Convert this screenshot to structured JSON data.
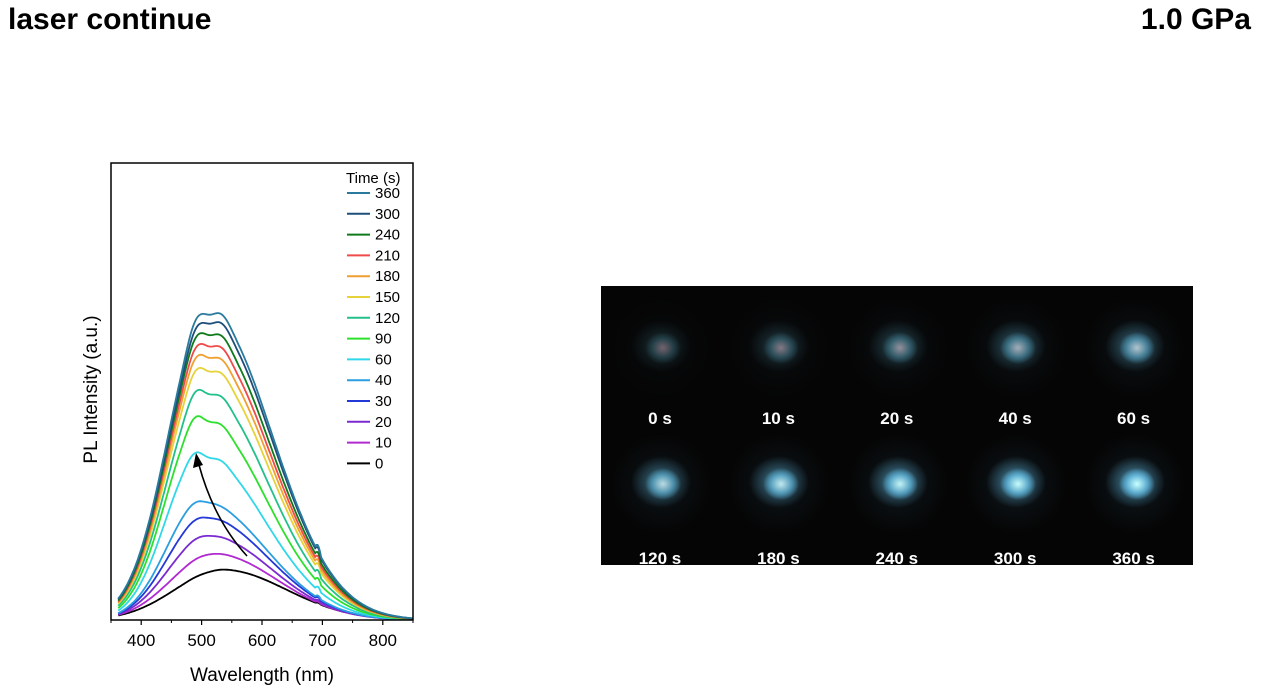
{
  "header": {
    "title": "laser continue",
    "pressure": "1.0 GPa"
  },
  "chart_data": {
    "type": "line",
    "xlabel": "Wavelength (nm)",
    "ylabel": "PL Intensity (a.u.)",
    "xlim": [
      350,
      850
    ],
    "ylim": [
      0,
      1.0
    ],
    "xticks": [
      400,
      500,
      600,
      700,
      800
    ],
    "yticks_shown": false,
    "legend_title": "Time (s)",
    "legend_position": "top-right",
    "grid": false,
    "annotation": "arrow indicating increasing intensity with time",
    "series": [
      {
        "name": "360",
        "color": "#2a7a9e",
        "peak_wavelength": 510,
        "peak_intensity": 0.68
      },
      {
        "name": "300",
        "color": "#1e4f7a",
        "peak_wavelength": 510,
        "peak_intensity": 0.66
      },
      {
        "name": "240",
        "color": "#0f7a1a",
        "peak_wavelength": 508,
        "peak_intensity": 0.635
      },
      {
        "name": "210",
        "color": "#f04a4a",
        "peak_wavelength": 507,
        "peak_intensity": 0.61
      },
      {
        "name": "180",
        "color": "#f0a030",
        "peak_wavelength": 506,
        "peak_intensity": 0.585
      },
      {
        "name": "150",
        "color": "#e6d23a",
        "peak_wavelength": 505,
        "peak_intensity": 0.555
      },
      {
        "name": "120",
        "color": "#22c08a",
        "peak_wavelength": 503,
        "peak_intensity": 0.505
      },
      {
        "name": "90",
        "color": "#2de02d",
        "peak_wavelength": 500,
        "peak_intensity": 0.445
      },
      {
        "name": "60",
        "color": "#2fd8e8",
        "peak_wavelength": 498,
        "peak_intensity": 0.365
      },
      {
        "name": "40",
        "color": "#2a9ee0",
        "peak_wavelength": 500,
        "peak_intensity": 0.26
      },
      {
        "name": "30",
        "color": "#2438d8",
        "peak_wavelength": 505,
        "peak_intensity": 0.225
      },
      {
        "name": "20",
        "color": "#7a2ad0",
        "peak_wavelength": 510,
        "peak_intensity": 0.185
      },
      {
        "name": "10",
        "color": "#b02ad0",
        "peak_wavelength": 520,
        "peak_intensity": 0.145
      },
      {
        "name": "0",
        "color": "#000000",
        "peak_wavelength": 535,
        "peak_intensity": 0.11
      }
    ]
  },
  "photos": {
    "frames": [
      {
        "label": "0 s",
        "brightness": 0.15
      },
      {
        "label": "10 s",
        "brightness": 0.28
      },
      {
        "label": "20 s",
        "brightness": 0.4
      },
      {
        "label": "40 s",
        "brightness": 0.55
      },
      {
        "label": "60 s",
        "brightness": 0.68
      },
      {
        "label": "120 s",
        "brightness": 0.8
      },
      {
        "label": "180 s",
        "brightness": 0.87
      },
      {
        "label": "240 s",
        "brightness": 0.93
      },
      {
        "label": "300 s",
        "brightness": 0.97
      },
      {
        "label": "360 s",
        "brightness": 1.0
      }
    ]
  }
}
